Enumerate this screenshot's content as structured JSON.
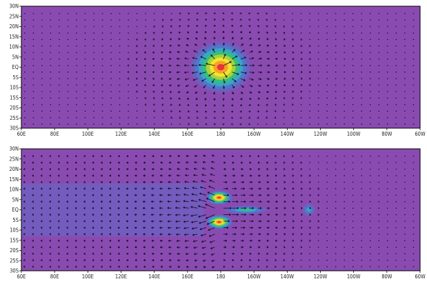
{
  "colors": {
    "background_field": "#8a4bb0",
    "contour_levels": [
      "#8a4bb0",
      "#6e5fbf",
      "#4f79c9",
      "#3aa6c6",
      "#35c07a",
      "#a8d23a",
      "#f2e52b",
      "#f5a12a",
      "#e8343b"
    ]
  },
  "axes": {
    "y_labels": [
      "30N",
      "25N",
      "20N",
      "15N",
      "10N",
      "5N",
      "EQ",
      "5S",
      "10S",
      "15S",
      "20S",
      "25S",
      "30S"
    ],
    "x_labels": [
      "60E",
      "80E",
      "100E",
      "120E",
      "140E",
      "160E",
      "180",
      "160W",
      "140W",
      "120W",
      "100W",
      "80W",
      "60W"
    ],
    "lat_range": [
      -30,
      30
    ],
    "lon_range_east": [
      60,
      300
    ]
  },
  "panels": [
    {
      "id": "top",
      "field_blobs": [
        {
          "lon": 180,
          "lat": 0,
          "rx_deg": 20,
          "ry_deg": 14,
          "levels": 9
        }
      ],
      "vector_pattern": "radial-divergence",
      "vector_center": {
        "lon": 180,
        "lat": 0
      },
      "vector_radius_deg": 22
    },
    {
      "id": "bottom",
      "field_blobs": [
        {
          "lon": 179,
          "lat": 6,
          "rx_deg": 9,
          "ry_deg": 4,
          "levels": 9
        },
        {
          "lon": 179,
          "lat": -6,
          "rx_deg": 9,
          "ry_deg": 4,
          "levels": 9
        },
        {
          "lon": 195,
          "lat": 0,
          "rx_deg": 16,
          "ry_deg": 2.5,
          "levels": 5
        },
        {
          "lon": 233,
          "lat": 0,
          "rx_deg": 5,
          "ry_deg": 4,
          "levels": 4
        }
      ],
      "wake": {
        "lon_from": 60,
        "lon_to": 170,
        "lat_from": -13,
        "lat_to": 13
      },
      "vector_pattern": "westward-easterly",
      "vector_center": {
        "lon": 180,
        "lat": 0
      },
      "vector_radius_deg": 26
    }
  ]
}
